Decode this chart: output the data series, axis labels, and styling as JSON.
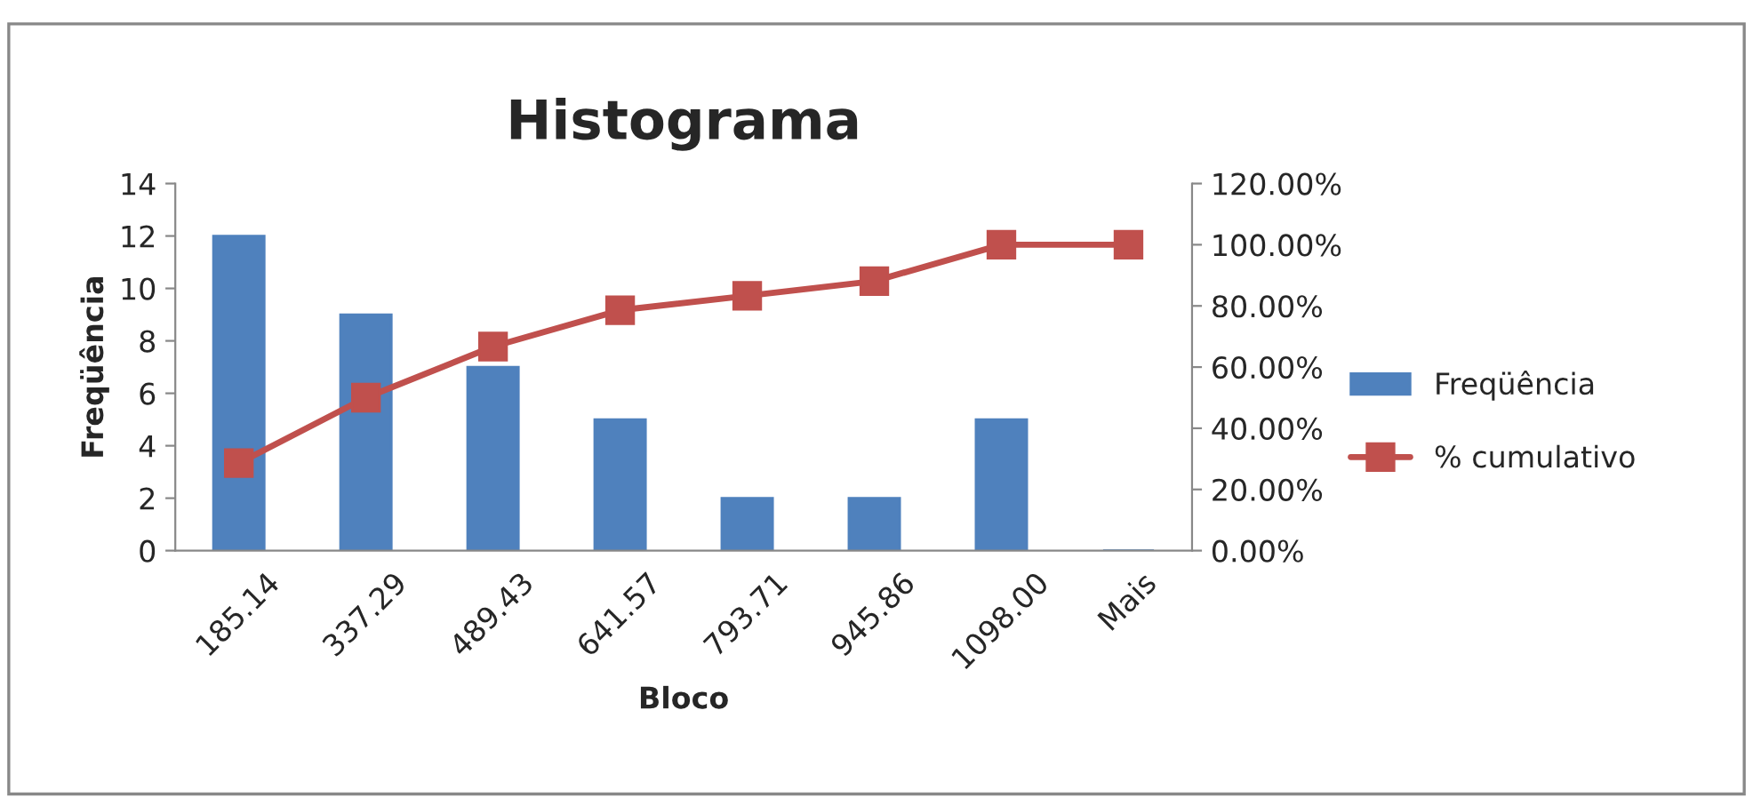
{
  "chart_data": {
    "type": "bar",
    "title": "Histograma",
    "xlabel": "Bloco",
    "ylabel": "Freqüência",
    "categories": [
      "185.14",
      "337.29",
      "489.43",
      "641.57",
      "793.71",
      "945.86",
      "1098.00",
      "Mais"
    ],
    "series": [
      {
        "name": "Freqüência",
        "color": "#4f81bd",
        "values": [
          12,
          9,
          7,
          5,
          2,
          2,
          5,
          0
        ]
      },
      {
        "name": "% cumulativo",
        "type": "line",
        "axis": "y2",
        "color": "#c0504d",
        "marker": "square",
        "values": [
          28.6,
          50,
          66.7,
          78.6,
          83.3,
          88.1,
          100,
          100
        ]
      }
    ],
    "ylim": [
      0,
      14
    ],
    "yticks": [
      0,
      2,
      4,
      6,
      8,
      10,
      12,
      14
    ],
    "y2lim": [
      0,
      120
    ],
    "y2ticks": [
      {
        "value": 0,
        "label": "0.00%"
      },
      {
        "value": 20,
        "label": "20.00%"
      },
      {
        "value": 40,
        "label": "40.00%"
      },
      {
        "value": 60,
        "label": "60.00%"
      },
      {
        "value": 80,
        "label": "80.00%"
      },
      {
        "value": 100,
        "label": "100.00%"
      },
      {
        "value": 120,
        "label": "120.00%"
      }
    ],
    "grid": false,
    "legend": "right"
  }
}
